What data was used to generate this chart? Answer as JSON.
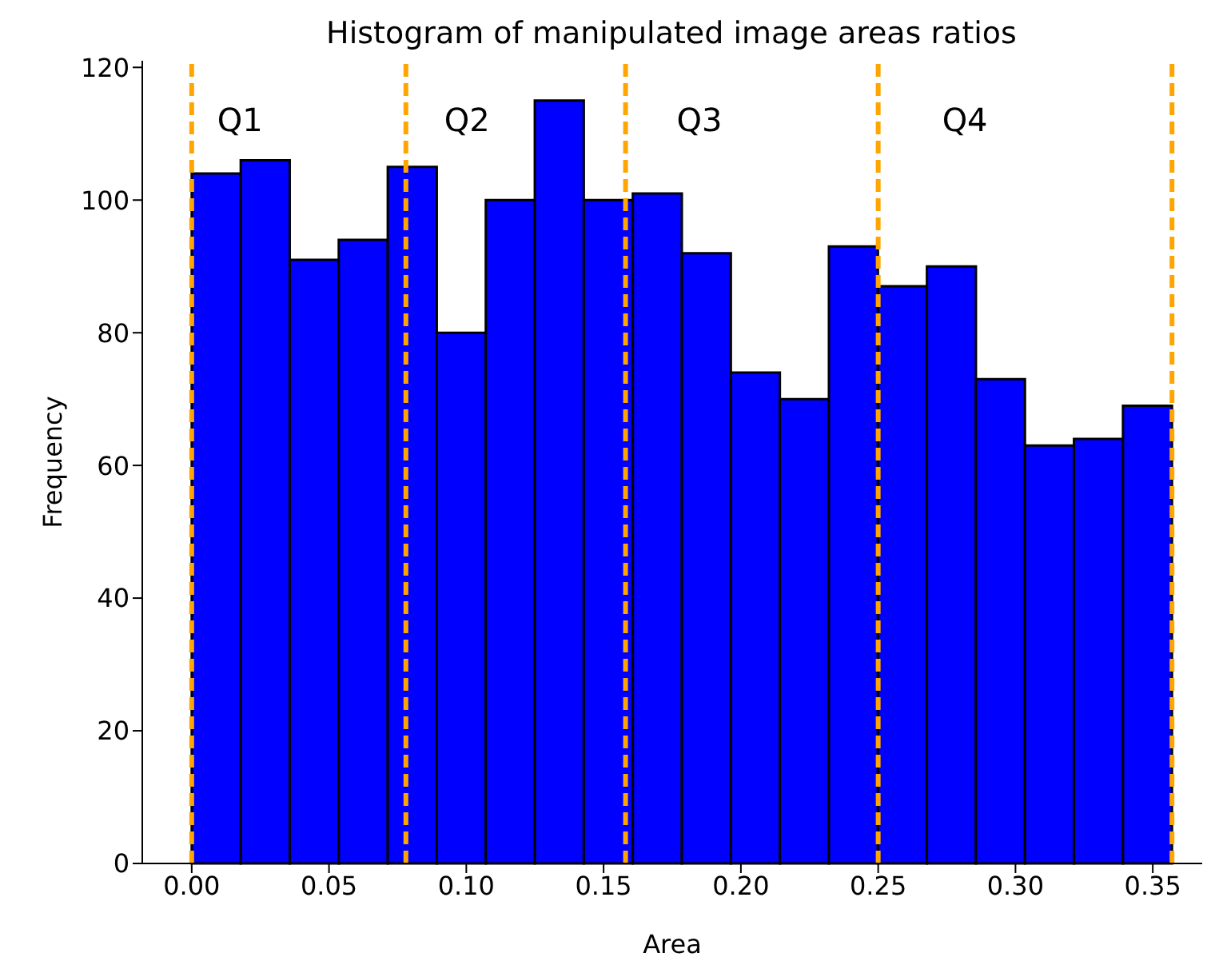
{
  "chart_data": {
    "type": "histogram",
    "title": "Histogram of manipulated image areas ratios",
    "xlabel": "Area",
    "ylabel": "Frequency",
    "bins": [
      0,
      0.01785,
      0.0357,
      0.05355,
      0.0714,
      0.08925,
      0.1071,
      0.12495,
      0.1428,
      0.16065,
      0.1785,
      0.19635,
      0.2142,
      0.23205,
      0.2499,
      0.26775,
      0.2856,
      0.30345,
      0.3213,
      0.33915,
      0.357
    ],
    "values": [
      104,
      106,
      91,
      94,
      105,
      80,
      100,
      115,
      100,
      101,
      92,
      74,
      70,
      93,
      87,
      90,
      73,
      63,
      64,
      69
    ],
    "color": "#0000ff",
    "xlim": [
      -0.018,
      0.368
    ],
    "xticks": [
      {
        "value": 0,
        "label": "0.00"
      },
      {
        "value": 0.05,
        "label": "0.05"
      },
      {
        "value": 0.1,
        "label": "0.10"
      },
      {
        "value": 0.15,
        "label": "0.15"
      },
      {
        "value": 0.2,
        "label": "0.20"
      },
      {
        "value": 0.25,
        "label": "0.25"
      },
      {
        "value": 0.3,
        "label": "0.30"
      },
      {
        "value": 0.35,
        "label": "0.35"
      }
    ],
    "ylim": [
      0,
      121
    ],
    "yticks": [
      0,
      20,
      40,
      60,
      80,
      100,
      120
    ],
    "ref_lines": [
      {
        "axis": "x",
        "value": 0,
        "color": "#ffa500",
        "line_style": "dashed"
      },
      {
        "axis": "x",
        "value": 0.078,
        "color": "#ffa500",
        "line_style": "dashed"
      },
      {
        "axis": "x",
        "value": 0.158,
        "color": "#ffa500",
        "line_style": "dashed"
      },
      {
        "axis": "x",
        "value": 0.25,
        "color": "#ffa500",
        "line_style": "dashed"
      },
      {
        "axis": "x",
        "value": 0.357,
        "color": "#ffa500",
        "line_style": "dashed"
      }
    ],
    "annotations": [
      "Q1",
      "Q2",
      "Q3",
      "Q4"
    ],
    "grid": false
  }
}
